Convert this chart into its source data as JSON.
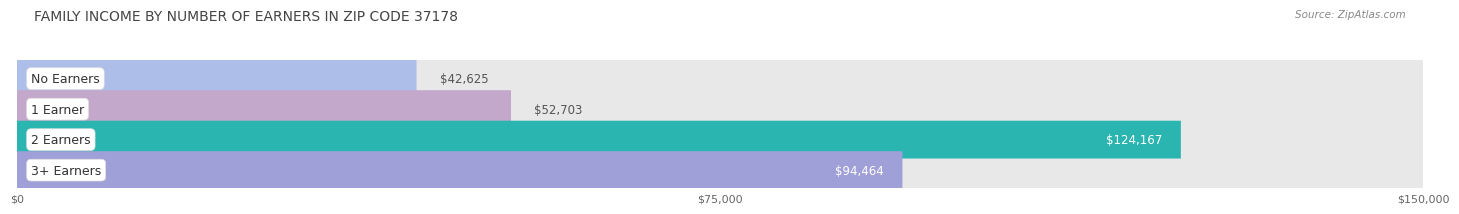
{
  "title": "FAMILY INCOME BY NUMBER OF EARNERS IN ZIP CODE 37178",
  "source": "Source: ZipAtlas.com",
  "categories": [
    "No Earners",
    "1 Earner",
    "2 Earners",
    "3+ Earners"
  ],
  "values": [
    42625,
    52703,
    124167,
    94464
  ],
  "bar_colors": [
    "#adbfe8",
    "#c4a8cc",
    "#2ab5b0",
    "#a0a0d8"
  ],
  "bar_track_color": "#e8e8e8",
  "value_labels": [
    "$42,625",
    "$52,703",
    "$124,167",
    "$94,464"
  ],
  "value_label_colors": [
    "#555555",
    "#555555",
    "#ffffff",
    "#ffffff"
  ],
  "value_label_inside": [
    false,
    false,
    true,
    true
  ],
  "xlim": [
    0,
    150000
  ],
  "xticks": [
    0,
    75000,
    150000
  ],
  "xtick_labels": [
    "$0",
    "$75,000",
    "$150,000"
  ],
  "background_color": "#ffffff",
  "plot_bg_color": "#f5f5f5",
  "title_fontsize": 10,
  "bar_height": 0.62,
  "label_fontsize": 8.5,
  "category_fontsize": 9
}
